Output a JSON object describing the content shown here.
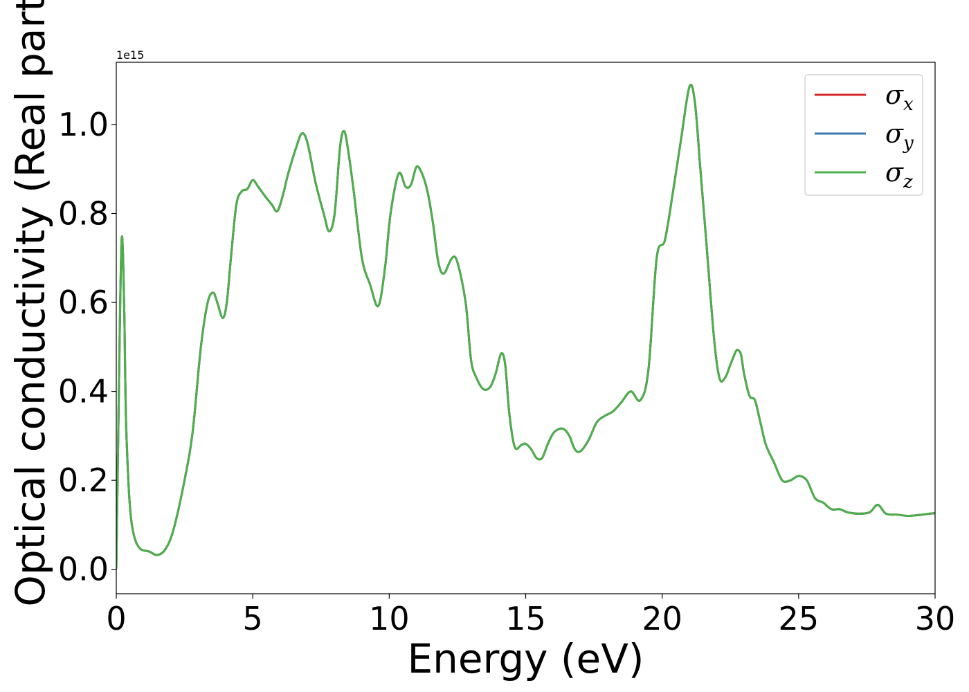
{
  "chart_data": {
    "type": "line",
    "title": "",
    "xlabel": "Energy (eV)",
    "ylabel": "Optical conductivity (Real part)",
    "y_offset_label": "1e15",
    "xlim": [
      0,
      30
    ],
    "ylim": [
      -0.055,
      1.14
    ],
    "x_ticks": [
      0,
      5,
      10,
      15,
      20,
      25,
      30
    ],
    "x_tick_labels": [
      "0",
      "5",
      "10",
      "15",
      "20",
      "25",
      "30"
    ],
    "y_ticks": [
      0.0,
      0.2,
      0.4,
      0.6,
      0.8,
      1.0
    ],
    "y_tick_labels": [
      "0.0",
      "0.2",
      "0.4",
      "0.6",
      "0.8",
      "1.0"
    ],
    "grid": false,
    "legend_position": "top-right",
    "series": [
      {
        "name": "σx",
        "label_main": "σ",
        "label_sub": "x",
        "color": "#d62728",
        "x": [
          0,
          0.1,
          0.15,
          0.2,
          0.25,
          0.3,
          0.35,
          0.45,
          0.55,
          0.7,
          0.9,
          1.2,
          1.5,
          1.8,
          2.1,
          2.5,
          2.8,
          3.1,
          3.35,
          3.55,
          3.7,
          3.9,
          4.05,
          4.2,
          4.4,
          4.6,
          4.8,
          5.0,
          5.2,
          5.5,
          5.7,
          5.9,
          6.1,
          6.3,
          6.6,
          6.8,
          7.0,
          7.3,
          7.6,
          7.8,
          8.0,
          8.2,
          8.35,
          8.5,
          8.7,
          9.0,
          9.3,
          9.6,
          9.85,
          10.05,
          10.35,
          10.6,
          10.8,
          11.0,
          11.2,
          11.4,
          11.6,
          11.8,
          12.0,
          12.3,
          12.5,
          12.8,
          13.0,
          13.2,
          13.45,
          13.7,
          13.9,
          14.1,
          14.25,
          14.4,
          14.6,
          14.85,
          15.0,
          15.2,
          15.4,
          15.6,
          15.8,
          16.0,
          16.2,
          16.4,
          16.6,
          16.8,
          17.0,
          17.3,
          17.6,
          17.9,
          18.2,
          18.5,
          18.85,
          19.2,
          19.5,
          19.8,
          20.1,
          20.4,
          20.7,
          21.0,
          21.2,
          21.4,
          21.6,
          21.9,
          22.1,
          22.3,
          22.5,
          22.7,
          22.8,
          22.9,
          23.0,
          23.2,
          23.4,
          23.6,
          23.8,
          24.1,
          24.4,
          24.7,
          25.0,
          25.3,
          25.6,
          25.9,
          26.2,
          26.5,
          26.8,
          27.2,
          27.6,
          27.9,
          28.2,
          28.6,
          29.0,
          29.4,
          29.8,
          30.0
        ],
        "y": [
          0.0,
          0.42,
          0.62,
          0.745,
          0.7,
          0.56,
          0.35,
          0.19,
          0.11,
          0.065,
          0.045,
          0.04,
          0.032,
          0.045,
          0.09,
          0.2,
          0.31,
          0.5,
          0.6,
          0.622,
          0.6,
          0.565,
          0.6,
          0.7,
          0.82,
          0.85,
          0.855,
          0.875,
          0.86,
          0.835,
          0.82,
          0.805,
          0.84,
          0.89,
          0.95,
          0.98,
          0.96,
          0.87,
          0.8,
          0.76,
          0.8,
          0.95,
          0.985,
          0.94,
          0.85,
          0.7,
          0.64,
          0.592,
          0.68,
          0.8,
          0.89,
          0.86,
          0.865,
          0.905,
          0.89,
          0.85,
          0.78,
          0.69,
          0.665,
          0.7,
          0.69,
          0.6,
          0.47,
          0.43,
          0.405,
          0.41,
          0.44,
          0.485,
          0.46,
          0.35,
          0.275,
          0.28,
          0.282,
          0.27,
          0.25,
          0.25,
          0.28,
          0.305,
          0.315,
          0.315,
          0.3,
          0.27,
          0.265,
          0.29,
          0.33,
          0.345,
          0.355,
          0.375,
          0.4,
          0.38,
          0.45,
          0.7,
          0.74,
          0.85,
          0.97,
          1.085,
          1.05,
          0.9,
          0.75,
          0.52,
          0.43,
          0.43,
          0.46,
          0.49,
          0.492,
          0.48,
          0.44,
          0.39,
          0.38,
          0.33,
          0.28,
          0.24,
          0.2,
          0.2,
          0.21,
          0.2,
          0.16,
          0.15,
          0.135,
          0.135,
          0.128,
          0.125,
          0.128,
          0.145,
          0.125,
          0.123,
          0.12,
          0.122,
          0.125,
          0.126
        ]
      },
      {
        "name": "σy",
        "label_main": "σ",
        "label_sub": "y",
        "color": "#3a78ad",
        "same_as": "σx"
      },
      {
        "name": "σz",
        "label_main": "σ",
        "label_sub": "z",
        "color": "#4daf4a",
        "same_as": "σx"
      }
    ]
  }
}
